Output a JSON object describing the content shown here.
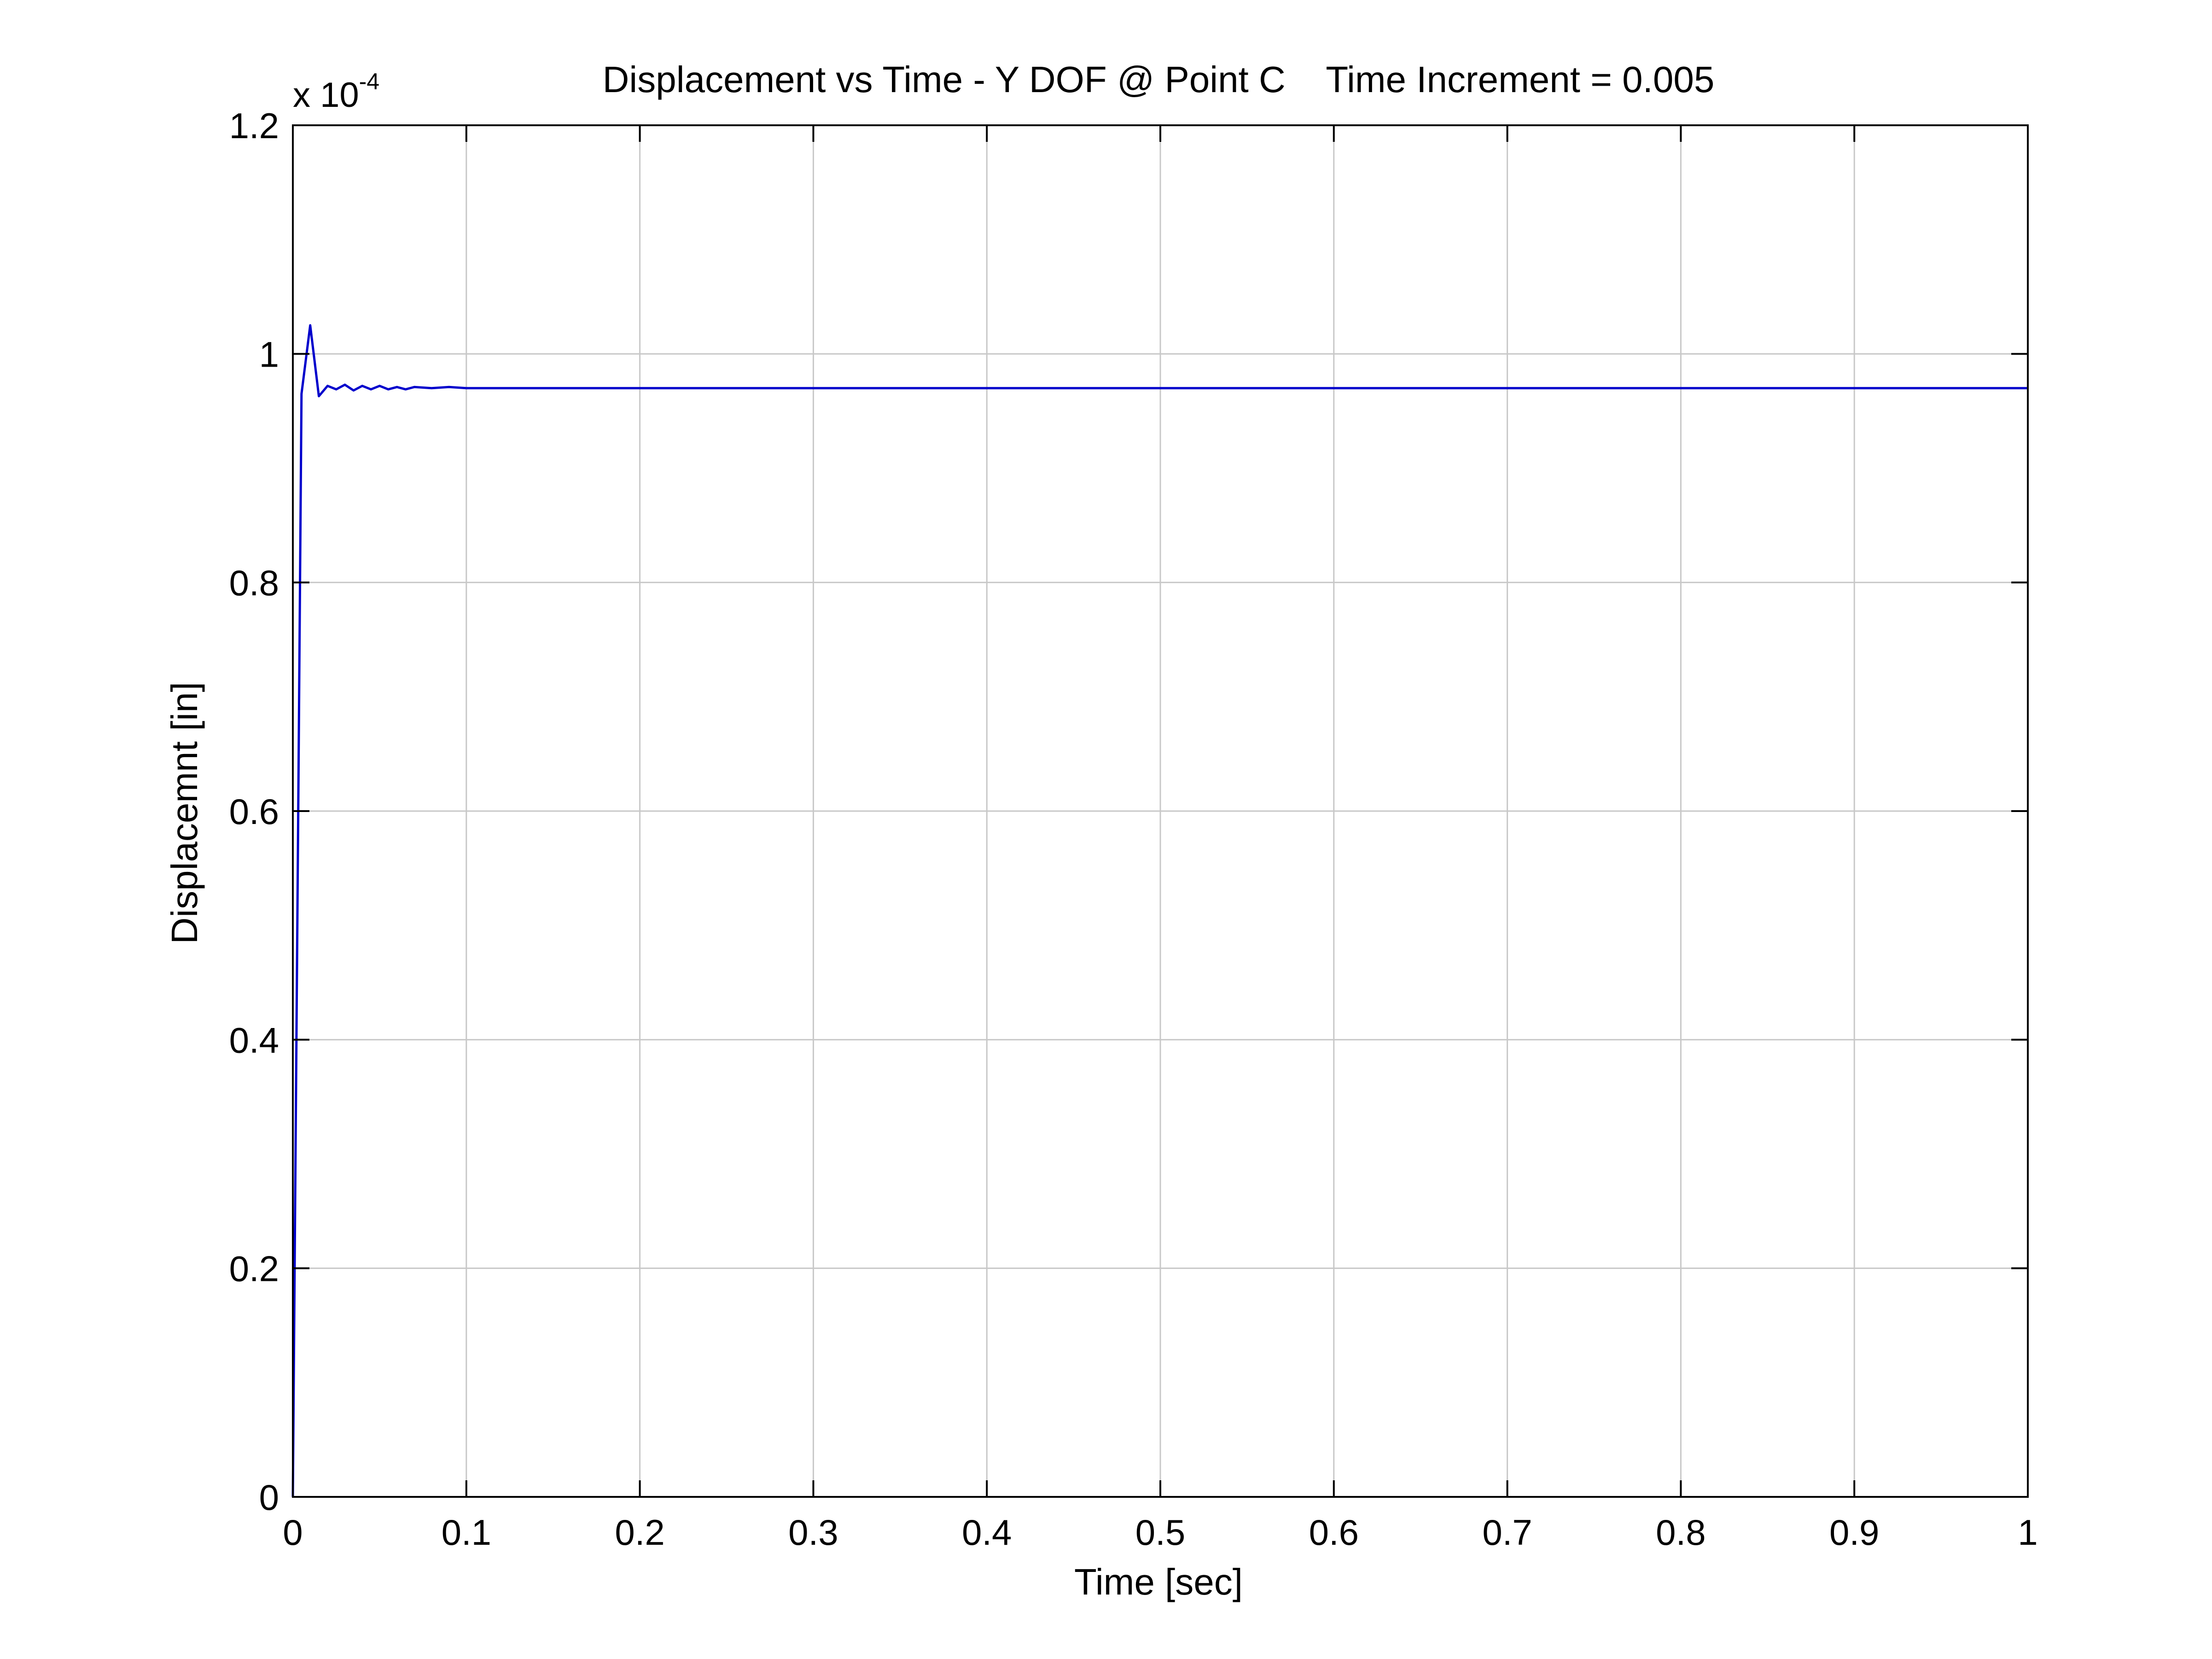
{
  "chart_data": {
    "type": "line",
    "title": "Displacement vs Time - Y DOF @ Point C    Time Increment = 0.005",
    "xlabel": "Time [sec]",
    "ylabel": "Displacemnt [in]",
    "xlim": [
      0,
      1
    ],
    "ylim": [
      0,
      1.2
    ],
    "y_scale_base": "x 10",
    "y_scale_exponent": "-4",
    "grid": true,
    "x_ticks": [
      "0",
      "0.1",
      "0.2",
      "0.3",
      "0.4",
      "0.5",
      "0.6",
      "0.7",
      "0.8",
      "0.9",
      "1"
    ],
    "y_ticks": [
      "0",
      "0.2",
      "0.4",
      "0.6",
      "0.8",
      "1",
      "1.2"
    ],
    "series_color": "#0000cc",
    "series": [
      {
        "x": [
          0,
          0.005,
          0.01,
          0.015,
          0.02,
          0.025,
          0.03,
          0.035,
          0.04,
          0.045,
          0.05,
          0.055,
          0.06,
          0.065,
          0.07,
          0.08,
          0.09,
          0.1,
          0.12,
          0.15,
          0.2,
          0.25,
          0.3,
          0.4,
          0.5,
          0.6,
          0.7,
          0.8,
          0.9,
          1.0
        ],
        "y": [
          0,
          0.965,
          1.025,
          0.963,
          0.972,
          0.969,
          0.973,
          0.968,
          0.972,
          0.969,
          0.972,
          0.969,
          0.971,
          0.969,
          0.971,
          0.97,
          0.971,
          0.97,
          0.97,
          0.97,
          0.97,
          0.97,
          0.97,
          0.97,
          0.97,
          0.97,
          0.97,
          0.97,
          0.97,
          0.97
        ]
      }
    ]
  }
}
